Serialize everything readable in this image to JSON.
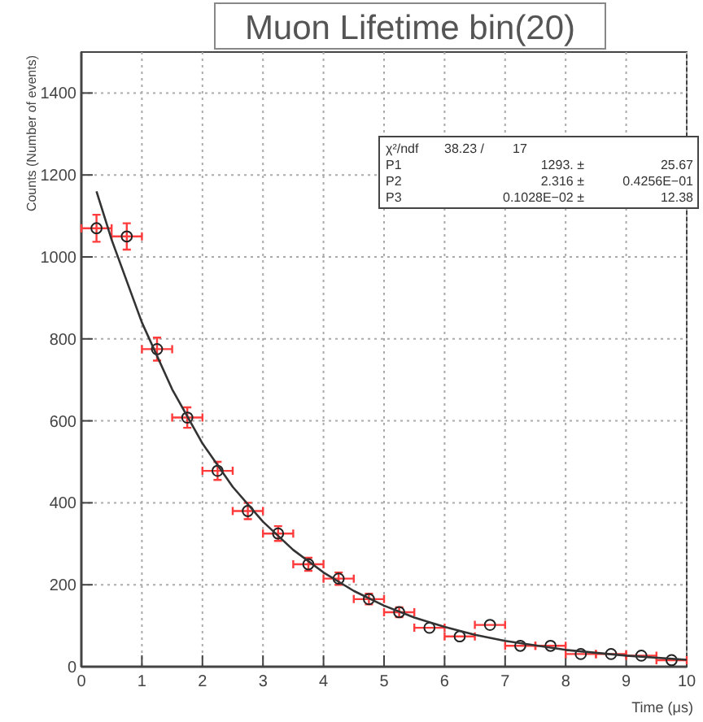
{
  "chart_data": {
    "type": "scatter",
    "title": "Muon Lifetime bin(20)",
    "xlabel": "Time (μs)",
    "ylabel": "Counts (Number of events)",
    "xlim": [
      0,
      10
    ],
    "ylim": [
      0,
      1500
    ],
    "xticks": [
      0,
      1,
      2,
      3,
      4,
      5,
      6,
      7,
      8,
      9,
      10
    ],
    "yticks": [
      0,
      200,
      400,
      600,
      800,
      1000,
      1200,
      1400
    ],
    "grid": true,
    "marker": "circle",
    "series": [
      {
        "color": "#222222",
        "x": [
          0.25,
          0.75,
          1.25,
          1.75,
          2.25,
          2.75,
          3.25,
          3.75,
          4.25,
          4.75,
          5.25,
          5.75,
          6.25,
          6.75,
          7.25,
          7.75,
          8.25,
          8.75,
          9.25,
          9.75
        ],
        "values": [
          1070,
          1050,
          775,
          608,
          478,
          380,
          325,
          250,
          215,
          165,
          133,
          95,
          74,
          102,
          51,
          51,
          31,
          31,
          27,
          16
        ],
        "errors": [
          33,
          32,
          28,
          25,
          22,
          20,
          18,
          16,
          15,
          13,
          12,
          null,
          null,
          null,
          null,
          null,
          null,
          null,
          null,
          null
        ],
        "xerrors": [
          0.25,
          0.25,
          0.25,
          0.25,
          0.25,
          0.25,
          0.25,
          0.25,
          0.25,
          0.25,
          0.25,
          0.25,
          0.25,
          0.25,
          0.25,
          0.25,
          0.25,
          0.25,
          0.25,
          0.25
        ]
      },
      {
        "type": "line",
        "marker": "none",
        "color": "#333333",
        "x": [
          0.25,
          0.5,
          1,
          1.5,
          2,
          2.5,
          3,
          3.5,
          4,
          4.5,
          5,
          5.5,
          6,
          6.5,
          7,
          8,
          9,
          10
        ],
        "values": [
          1160,
          1042,
          840,
          677,
          545,
          439,
          354,
          285,
          230,
          185,
          149,
          120,
          97,
          78,
          63,
          41,
          27,
          17
        ]
      }
    ],
    "annotations": [
      "χ²/ndf",
      "38.23  /",
      "17",
      "P1",
      "1293. ±",
      "25.67",
      "P2",
      "2.316 ±",
      "0.4256E−01",
      "P3",
      "0.1028E−02 ±",
      "12.38"
    ]
  }
}
